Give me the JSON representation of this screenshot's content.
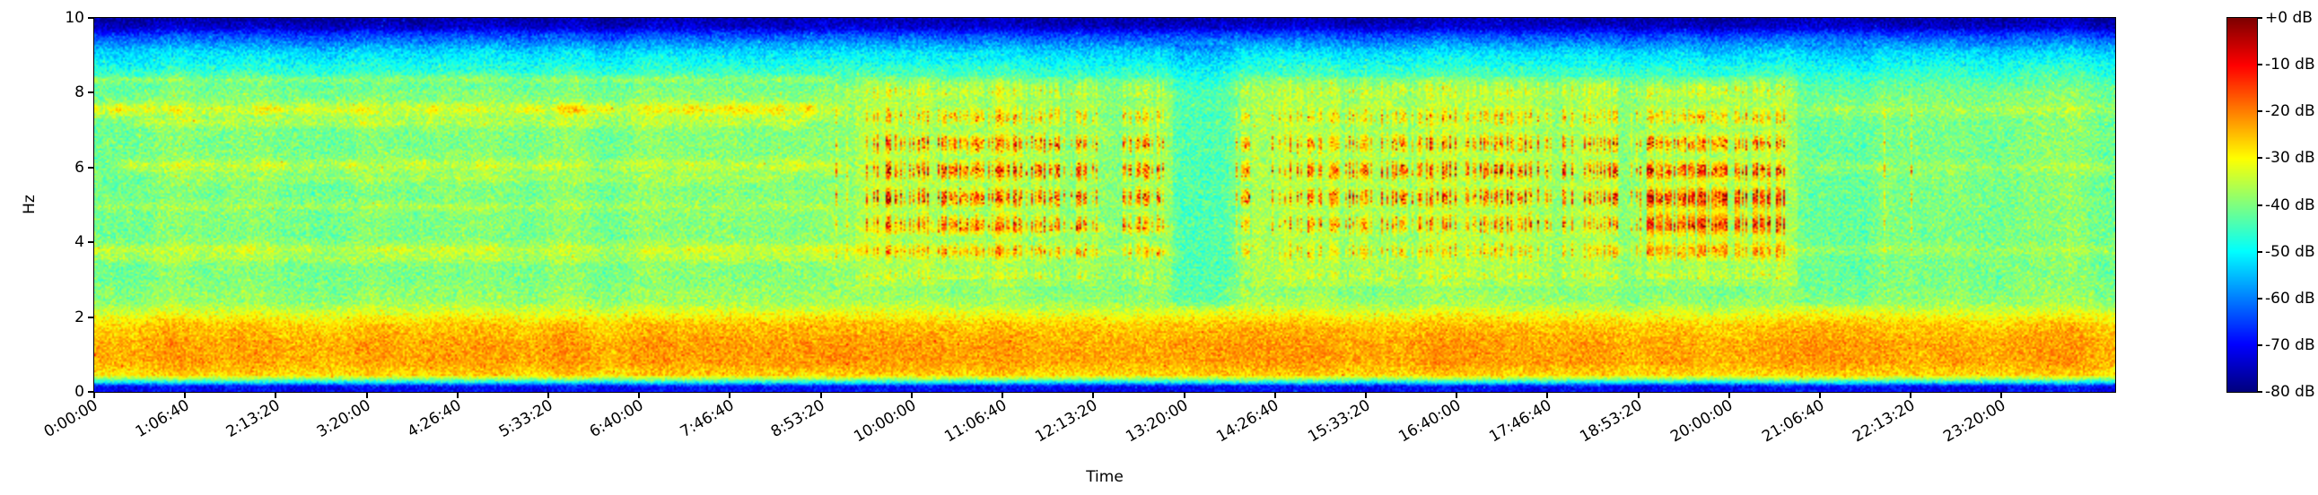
{
  "chart_data": {
    "type": "heatmap",
    "subtype": "spectrogram",
    "title": "",
    "xlabel": "Time",
    "ylabel": "Hz",
    "x_range_seconds": [
      0,
      89000
    ],
    "y_range_hz": [
      0,
      10
    ],
    "x_ticks": [
      {
        "seconds": 0,
        "label": "0:00:00"
      },
      {
        "seconds": 4000,
        "label": "1:06:40"
      },
      {
        "seconds": 8000,
        "label": "2:13:20"
      },
      {
        "seconds": 12000,
        "label": "3:20:00"
      },
      {
        "seconds": 16000,
        "label": "4:26:40"
      },
      {
        "seconds": 20000,
        "label": "5:33:20"
      },
      {
        "seconds": 24000,
        "label": "6:40:00"
      },
      {
        "seconds": 28000,
        "label": "7:46:40"
      },
      {
        "seconds": 32000,
        "label": "8:53:20"
      },
      {
        "seconds": 36000,
        "label": "10:00:00"
      },
      {
        "seconds": 40000,
        "label": "11:06:40"
      },
      {
        "seconds": 44000,
        "label": "12:13:20"
      },
      {
        "seconds": 48000,
        "label": "13:20:00"
      },
      {
        "seconds": 52000,
        "label": "14:26:40"
      },
      {
        "seconds": 56000,
        "label": "15:33:20"
      },
      {
        "seconds": 60000,
        "label": "16:40:00"
      },
      {
        "seconds": 64000,
        "label": "17:46:40"
      },
      {
        "seconds": 68000,
        "label": "18:53:20"
      },
      {
        "seconds": 72000,
        "label": "20:00:00"
      },
      {
        "seconds": 76000,
        "label": "21:06:40"
      },
      {
        "seconds": 80000,
        "label": "22:13:20"
      },
      {
        "seconds": 84000,
        "label": "23:20:00"
      }
    ],
    "y_ticks": [
      0,
      2,
      4,
      6,
      8,
      10
    ],
    "colorbar": {
      "colormap": "jet",
      "min_db": -80,
      "max_db": 0,
      "tick_labels": [
        "+0 dB",
        "-10 dB",
        "-20 dB",
        "-30 dB",
        "-40 dB",
        "-50 dB",
        "-60 dB",
        "-70 dB",
        "-80 dB"
      ]
    },
    "description": "24-hour audio spectrogram, 0-10 Hz, jet colormap. Continuous orange energy band near 0.4-1.9 Hz all day; patchy orange horizontal tonal bands near 7.5, 6.0 and 3.8 Hz during first ~9 hours; dense red vertical burst striations (3-8.5 Hz) from ~9:30-12:30 and ~14:00-20:30, strongest cluster ~18:50-20:30; quieter cyan-green background above 8.5 Hz and dark blue at extreme top/bottom.",
    "render_model": {
      "seed": 1337,
      "t_max": 89000,
      "f_max": 10,
      "speckle_db": 7,
      "base_profile_hz_db": [
        [
          0,
          -70
        ],
        [
          0.15,
          -70
        ],
        [
          0.28,
          -46
        ],
        [
          0.45,
          -27
        ],
        [
          0.8,
          -23
        ],
        [
          1.3,
          -23
        ],
        [
          1.8,
          -26
        ],
        [
          2.05,
          -31
        ],
        [
          2.4,
          -38
        ],
        [
          3.0,
          -40
        ],
        [
          8.0,
          -40
        ],
        [
          8.4,
          -44
        ],
        [
          9.1,
          -53
        ],
        [
          9.55,
          -65
        ],
        [
          9.75,
          -74
        ],
        [
          10,
          -77
        ]
      ],
      "horizontal_bands": [
        {
          "hz": 7.55,
          "sigma": 0.13,
          "boost_db": 13,
          "t0": 0,
          "t1": 32500,
          "patchiness": 0.55
        },
        {
          "hz": 7.2,
          "sigma": 0.09,
          "boost_db": 6,
          "t0": 2000,
          "t1": 31000,
          "patchiness": 0.5
        },
        {
          "hz": 6.05,
          "sigma": 0.12,
          "boost_db": 8,
          "t0": 1500,
          "t1": 32500,
          "patchiness": 0.55
        },
        {
          "hz": 5.7,
          "sigma": 0.08,
          "boost_db": 4,
          "t0": 4000,
          "t1": 30000,
          "patchiness": 0.5
        },
        {
          "hz": 4.95,
          "sigma": 0.08,
          "boost_db": 4,
          "t0": 0,
          "t1": 32500,
          "patchiness": 0.45
        },
        {
          "hz": 3.8,
          "sigma": 0.12,
          "boost_db": 8,
          "t0": 0,
          "t1": 33500,
          "patchiness": 0.45
        },
        {
          "hz": 3.55,
          "sigma": 0.07,
          "boost_db": 4,
          "t0": 0,
          "t1": 33000,
          "patchiness": 0.4
        },
        {
          "hz": 8.35,
          "sigma": 0.07,
          "boost_db": 6,
          "t0": 0,
          "t1": 32000,
          "patchiness": 0.4
        },
        {
          "hz": 4.35,
          "sigma": 0.08,
          "boost_db": 5,
          "t0": 34000,
          "t1": 47000,
          "patchiness": 0.5
        },
        {
          "hz": 3.75,
          "sigma": 0.08,
          "boost_db": 6,
          "t0": 34000,
          "t1": 47000,
          "patchiness": 0.5
        },
        {
          "hz": 3.8,
          "sigma": 0.1,
          "boost_db": 5,
          "t0": 66000,
          "t1": 75200,
          "patchiness": 0.5
        },
        {
          "hz": 7.55,
          "sigma": 0.12,
          "boost_db": 5,
          "t0": 76000,
          "t1": 89000,
          "patchiness": 0.5
        },
        {
          "hz": 6.0,
          "sigma": 0.1,
          "boost_db": 4,
          "t0": 76000,
          "t1": 89000,
          "patchiness": 0.5
        },
        {
          "hz": 3.8,
          "sigma": 0.1,
          "boost_db": 4,
          "t0": 76000,
          "t1": 89000,
          "patchiness": 0.5
        }
      ],
      "burst_regions": [
        {
          "t0": 31500,
          "t1": 34500,
          "density": 0.2,
          "strength_db": 27
        },
        {
          "t0": 34500,
          "t1": 43500,
          "density": 0.5,
          "strength_db": 30
        },
        {
          "t0": 43500,
          "t1": 45000,
          "density": 0.15,
          "strength_db": 26
        },
        {
          "t0": 45000,
          "t1": 47500,
          "density": 0.55,
          "strength_db": 31
        },
        {
          "t0": 48500,
          "t1": 50200,
          "density": 0.08,
          "strength_db": 24
        },
        {
          "t0": 50200,
          "t1": 50900,
          "density": 0.45,
          "strength_db": 29
        },
        {
          "t0": 51500,
          "t1": 56500,
          "density": 0.35,
          "strength_db": 28
        },
        {
          "t0": 56500,
          "t1": 68000,
          "density": 0.45,
          "strength_db": 30
        },
        {
          "t0": 68000,
          "t1": 74500,
          "density": 0.6,
          "strength_db": 32,
          "hot": [
            4.7,
            0.9,
            7
          ]
        },
        {
          "t0": 78800,
          "t1": 80300,
          "density": 0.12,
          "strength_db": 26
        }
      ],
      "background_wash": [
        {
          "t0": 33500,
          "t1": 47500,
          "boost_db": 3
        },
        {
          "t0": 51000,
          "t1": 75000,
          "boost_db": 3.5
        }
      ],
      "quiet_windows": [
        {
          "t0": 47300,
          "t1": 50400,
          "dip_db": 4
        },
        {
          "t0": 74800,
          "t1": 78600,
          "dip_db": 3
        }
      ]
    }
  }
}
